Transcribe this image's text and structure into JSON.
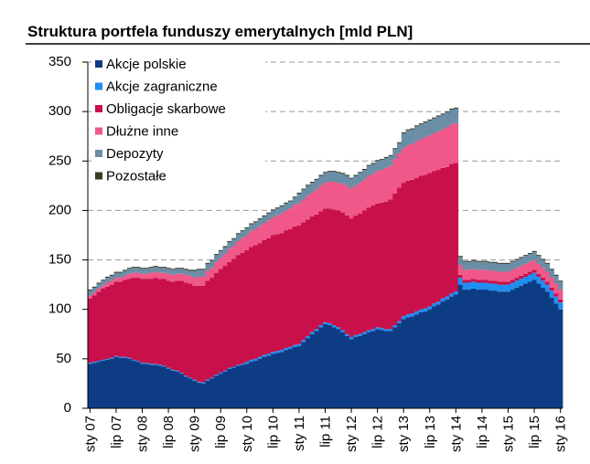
{
  "chart_data": {
    "type": "stacked_bar",
    "title": "Struktura portfela funduszy emerytalnych [mld PLN]",
    "categories": [
      "sty 07",
      null,
      null,
      null,
      null,
      null,
      "lip 07",
      null,
      null,
      null,
      null,
      null,
      "sty 08",
      null,
      null,
      null,
      null,
      null,
      "lip 08",
      null,
      null,
      null,
      null,
      null,
      "sty 09",
      null,
      null,
      null,
      null,
      null,
      "lip 09",
      null,
      null,
      null,
      null,
      null,
      "sty 10",
      null,
      null,
      null,
      null,
      null,
      "lip 10",
      null,
      null,
      null,
      null,
      null,
      "sty 11",
      null,
      null,
      null,
      null,
      null,
      "lip 11",
      null,
      null,
      null,
      null,
      null,
      "sty 12",
      null,
      null,
      null,
      null,
      null,
      "lip 12",
      null,
      null,
      null,
      null,
      null,
      "sty 13",
      null,
      null,
      null,
      null,
      null,
      "lip 13",
      null,
      null,
      null,
      null,
      null,
      "sty 14",
      null,
      null,
      null,
      null,
      null,
      "lip 14",
      null,
      null,
      null,
      null,
      null,
      "sty 15",
      null,
      null,
      null,
      null,
      null,
      "lip 15",
      null,
      null,
      null,
      null,
      null,
      "sty 16"
    ],
    "series": [
      {
        "name": "Akcje polskie",
        "color": "#0d3c84",
        "values": [
          45,
          46,
          47,
          48,
          49,
          50,
          52,
          51,
          51,
          50,
          48,
          47,
          45,
          45,
          44,
          44,
          43,
          42,
          40,
          38,
          37,
          35,
          32,
          30,
          28,
          26,
          25,
          28,
          30,
          33,
          35,
          37,
          40,
          41,
          43,
          44,
          45,
          47,
          48,
          50,
          52,
          53,
          55,
          56,
          57,
          59,
          60,
          62,
          63,
          67,
          71,
          75,
          78,
          82,
          85,
          84,
          82,
          80,
          77,
          73,
          70,
          72,
          73,
          75,
          77,
          78,
          80,
          79,
          78,
          78,
          82,
          86,
          90,
          92,
          93,
          95,
          97,
          98,
          100,
          103,
          105,
          108,
          110,
          113,
          115,
          125,
          120,
          120,
          121,
          120,
          120,
          120,
          119,
          119,
          118,
          118,
          118,
          120,
          122,
          124,
          126,
          128,
          130,
          126,
          122,
          118,
          112,
          106,
          100
        ]
      },
      {
        "name": "Akcje zagraniczne",
        "color": "#1f8ff0",
        "values": [
          1,
          1,
          1,
          1,
          1,
          1,
          1,
          1,
          1,
          1,
          1,
          1,
          1,
          1,
          1,
          1,
          1,
          1,
          1,
          1,
          1,
          1,
          1,
          1,
          1,
          1,
          1,
          1,
          1,
          1,
          1,
          1,
          1,
          1,
          1,
          1,
          2,
          2,
          2,
          2,
          2,
          2,
          2,
          2,
          2,
          2,
          2,
          2,
          2,
          2,
          2,
          2,
          2,
          2,
          2,
          2,
          2,
          2,
          2,
          2,
          2,
          2,
          2,
          2,
          2,
          2,
          2,
          2,
          2,
          2,
          2,
          2,
          3,
          3,
          3,
          3,
          3,
          3,
          3,
          3,
          3,
          3,
          3,
          3,
          3,
          7,
          7,
          7,
          7,
          7,
          7,
          7,
          7,
          7,
          7,
          7,
          7,
          7,
          7,
          7,
          7,
          7,
          7,
          7,
          7,
          7,
          7,
          7,
          7
        ]
      },
      {
        "name": "Obligacje skarbowe",
        "color": "#c8104a",
        "values": [
          65,
          67,
          70,
          72,
          73,
          74,
          75,
          76,
          78,
          80,
          83,
          84,
          85,
          85,
          86,
          87,
          87,
          88,
          88,
          89,
          91,
          93,
          94,
          95,
          95,
          97,
          98,
          100,
          101,
          103,
          105,
          106,
          107,
          109,
          111,
          112,
          113,
          114,
          115,
          115,
          116,
          117,
          118,
          118,
          118,
          119,
          119,
          120,
          120,
          119,
          118,
          117,
          116,
          115,
          115,
          116,
          117,
          118,
          119,
          120,
          120,
          121,
          122,
          123,
          124,
          125,
          125,
          127,
          129,
          131,
          133,
          135,
          135,
          135,
          135,
          135,
          135,
          135,
          135,
          134,
          133,
          132,
          131,
          131,
          130,
          3,
          3,
          3,
          3,
          3,
          3,
          3,
          3,
          3,
          3,
          3,
          3,
          3,
          3,
          3,
          3,
          3,
          3,
          3,
          3,
          3,
          3,
          3,
          3
        ]
      },
      {
        "name": "Dłużne inne",
        "color": "#f0588a",
        "values": [
          3,
          3,
          3,
          3,
          4,
          4,
          4,
          4,
          4,
          5,
          5,
          5,
          5,
          5,
          6,
          6,
          6,
          6,
          7,
          7,
          7,
          7,
          8,
          8,
          8,
          9,
          9,
          10,
          10,
          11,
          11,
          12,
          13,
          13,
          14,
          15,
          15,
          16,
          16,
          17,
          17,
          18,
          18,
          19,
          20,
          20,
          21,
          22,
          22,
          23,
          24,
          24,
          25,
          26,
          26,
          27,
          28,
          28,
          29,
          30,
          30,
          30,
          31,
          31,
          32,
          32,
          33,
          33,
          34,
          34,
          35,
          35,
          35,
          36,
          36,
          37,
          37,
          38,
          38,
          38,
          39,
          39,
          40,
          40,
          40,
          10,
          10,
          10,
          10,
          10,
          10,
          10,
          10,
          10,
          10,
          10,
          10,
          10,
          10,
          10,
          10,
          10,
          10,
          10,
          10,
          10,
          10,
          10,
          10
        ]
      },
      {
        "name": "Depozyty",
        "color": "#6a8ea6",
        "values": [
          5,
          5,
          5,
          5,
          5,
          5,
          5,
          5,
          5,
          5,
          5,
          5,
          5,
          5,
          5,
          5,
          5,
          5,
          5,
          5,
          5,
          5,
          5,
          5,
          7,
          7,
          7,
          7,
          7,
          7,
          7,
          7,
          7,
          7,
          7,
          7,
          7,
          7,
          7,
          7,
          7,
          7,
          7,
          7,
          7,
          7,
          7,
          7,
          10,
          10,
          10,
          10,
          10,
          10,
          10,
          10,
          10,
          10,
          10,
          10,
          10,
          10,
          10,
          10,
          10,
          10,
          10,
          10,
          10,
          10,
          10,
          10,
          15,
          15,
          15,
          15,
          15,
          15,
          15,
          15,
          15,
          15,
          15,
          15,
          15,
          8,
          8,
          8,
          8,
          8,
          8,
          8,
          8,
          8,
          8,
          8,
          8,
          8,
          8,
          8,
          8,
          8,
          8,
          8,
          8,
          8,
          8,
          8,
          8
        ]
      },
      {
        "name": "Pozostałe",
        "color": "#3a3a2a",
        "values": [
          1,
          1,
          1,
          1,
          1,
          1,
          1,
          1,
          1,
          1,
          1,
          1,
          1,
          1,
          1,
          1,
          1,
          1,
          1,
          1,
          1,
          1,
          1,
          1,
          1,
          1,
          1,
          1,
          1,
          1,
          1,
          1,
          1,
          1,
          1,
          1,
          1,
          1,
          1,
          1,
          1,
          1,
          1,
          1,
          1,
          1,
          1,
          1,
          1,
          1,
          1,
          1,
          1,
          1,
          1,
          1,
          1,
          1,
          1,
          1,
          1,
          1,
          1,
          1,
          1,
          1,
          1,
          1,
          1,
          1,
          1,
          1,
          1,
          1,
          1,
          1,
          1,
          1,
          1,
          1,
          1,
          1,
          1,
          1,
          1,
          1,
          1,
          1,
          1,
          1,
          1,
          1,
          1,
          1,
          1,
          1,
          1,
          1,
          1,
          1,
          1,
          1,
          1,
          1,
          1,
          1,
          1,
          1,
          1
        ]
      }
    ],
    "ylim": [
      0,
      350
    ],
    "yticks": [
      0,
      50,
      100,
      150,
      200,
      250,
      300,
      350
    ],
    "grid": true,
    "legend": "upper left"
  }
}
